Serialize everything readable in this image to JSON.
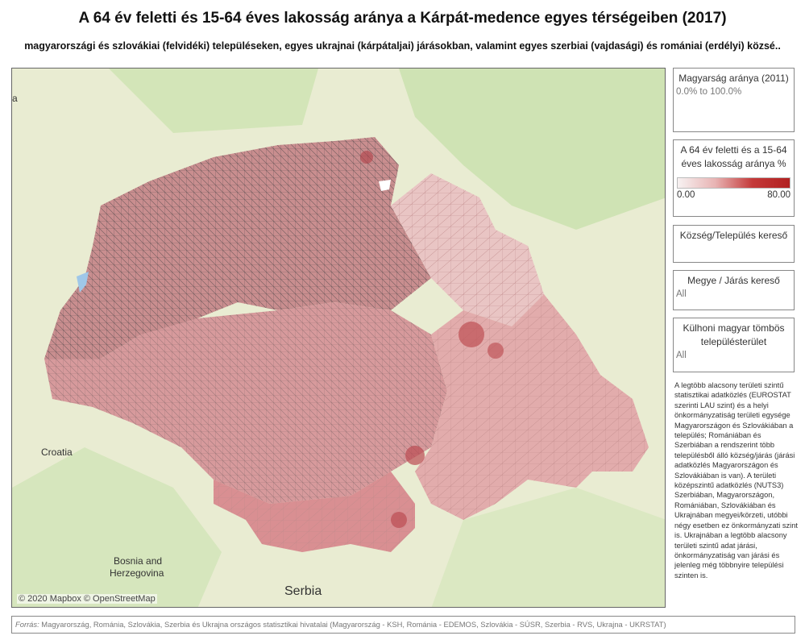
{
  "title": "A 64 év feletti és 15-64 éves lakosság aránya a Kárpát-medence egyes térségeiben (2017)",
  "subtitle": "magyarországi és szlovákiai (felvidéki) településeken, egyes ukrajnai (kárpátaljai) járásokban, valamint egyes szerbiai (vajdasági) és romániai (erdélyi) közsé..",
  "map": {
    "labels": {
      "croatia": "Croatia",
      "bosnia_line1": "Bosnia and",
      "bosnia_line2": "Herzegovina",
      "serbia": "Serbia",
      "edge": "a"
    },
    "attribution": "© 2020 Mapbox © OpenStreetMap"
  },
  "filters": {
    "magyarsag": {
      "title": "Magyarság aránya (2011)",
      "value": "0.0% to 100.0%"
    },
    "legend": {
      "title": "A 64 év feletti és a 15-64 éves lakosság aránya %",
      "min": "0.00",
      "max": "80.00",
      "colors": [
        "#f7f2f2",
        "#b12020"
      ]
    },
    "kozseg": {
      "title": "Község/Település kereső"
    },
    "megye": {
      "title": "Megye / Járás kereső",
      "value": "All"
    },
    "kulhoni": {
      "title": "Külhoni magyar tömbös településterület",
      "value": "All"
    }
  },
  "note": "A legtöbb alacsony területi szintű statisztikai adatközlés (EUROSTAT szerinti LAU szint) és a helyi önkormányzatiság területi egysége Magyarországon és Szlovákiában a település; Romániában és Szerbiában a rendszerint több településből álló község/járás (járási adatközlés Magyarországon és Szlovákiában is van). A területi középszintű adatközlés (NUTS3) Szerbiában, Magyarországon, Romániában, Szlovákiában és Ukrajnában megyei/körzeti, utóbbi négy esetben ez önkormányzati szint is. Ukrajnában a legtöbb alacsony területi szintű adat járási, önkormányzatiság van járási és jelenleg még többnyire települési szinten is.",
  "source": {
    "label": "Forrás:",
    "text": " Magyarország, Románia, Szlovákia, Szerbia és Ukrajna országos statisztikai hivatalai (Magyarország - KSH, Románia - EDEMOS, Szlovákia - SÚSR, Szerbia - RVS, Ukrajna - UKRSTAT)"
  }
}
